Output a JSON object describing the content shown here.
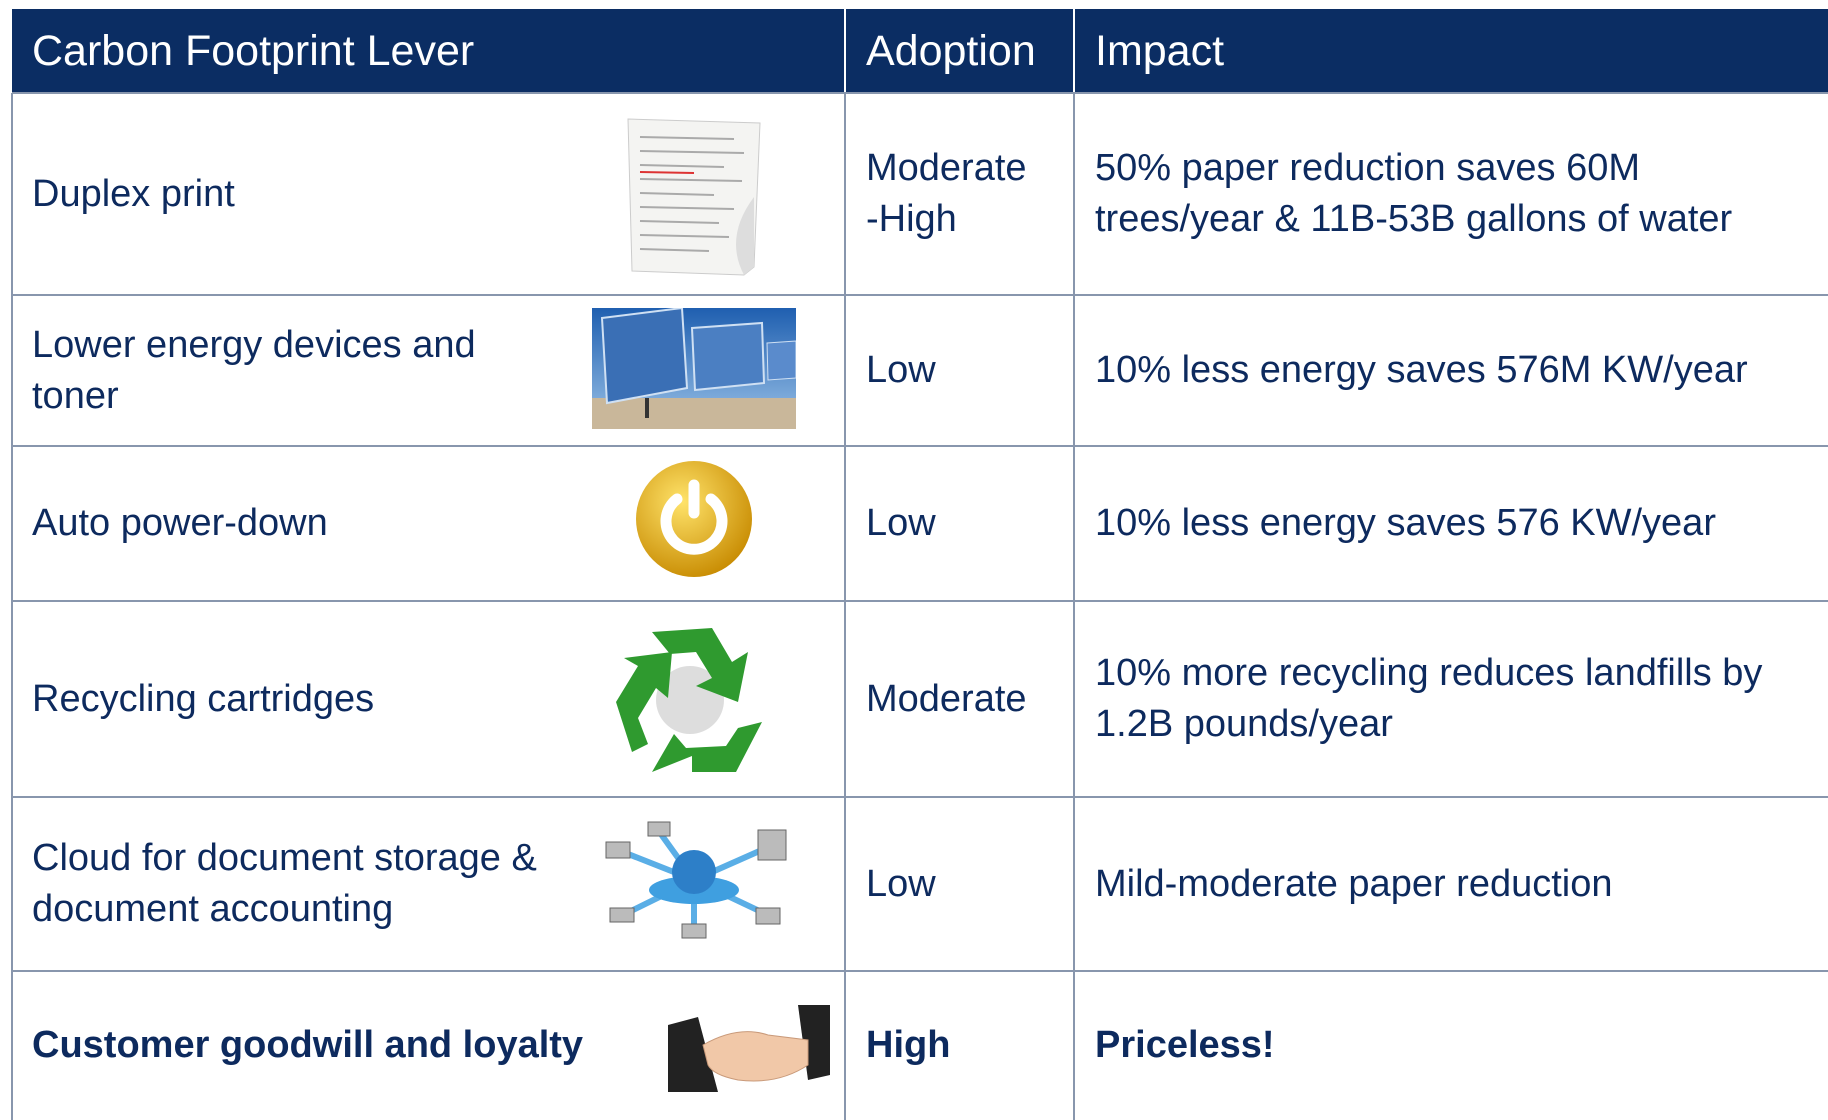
{
  "table": {
    "header": [
      "Carbon Footprint Lever",
      "Adoption",
      "Impact"
    ],
    "rows": [
      [
        "Duplex print",
        "Moderate\n-High",
        "50% paper reduction saves 60M trees/year & 11B-53B gallons of water"
      ],
      [
        "Lower energy devices and toner",
        "Low",
        "10% less energy saves 576M KW/year"
      ],
      [
        "Auto power-down",
        "Low",
        "10% less energy saves 576 KW/year"
      ],
      [
        "Recycling cartridges",
        "Moderate",
        "10% more recycling reduces landfills by 1.2B pounds/year"
      ],
      [
        "Cloud for document storage & document accounting",
        "Low",
        "Mild-moderate paper reduction"
      ],
      [
        "Customer goodwill and loyalty",
        "High",
        "Priceless!"
      ]
    ]
  }
}
